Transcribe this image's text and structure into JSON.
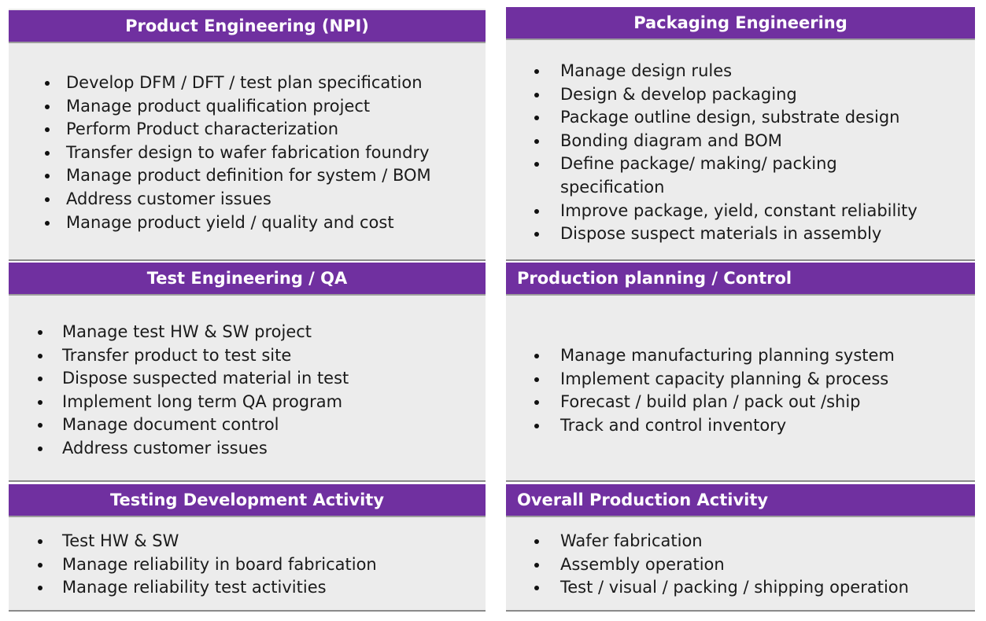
{
  "panels": [
    {
      "title": "Product Engineering (NPI)",
      "items": [
        "Develop DFM / DFT / test plan specification",
        "Manage product qualification project",
        "Perform Product characterization",
        "Transfer design to wafer fabrication foundry",
        "Manage product definition for system / BOM",
        "Address customer issues",
        "Manage product yield / quality and cost"
      ]
    },
    {
      "title": "Packaging Engineering",
      "items": [
        "Manage design rules",
        "Design & develop packaging",
        "Package outline design, substrate design",
        "Bonding diagram and BOM",
        "Define package/ making/ packing",
        "specification",
        "Improve package, yield, constant reliability",
        "Dispose suspect materials in assembly"
      ]
    },
    {
      "title": "Test Engineering / QA",
      "items": [
        "Manage test HW & SW project",
        "Transfer product to test site",
        "Dispose suspected material in test",
        "Implement long term QA program",
        "Manage document control",
        "Address customer issues"
      ]
    },
    {
      "title": "Production planning / Control",
      "items": [
        "Manage manufacturing planning system",
        "Implement capacity planning & process",
        "Forecast / build plan / pack out /ship",
        "Track and control inventory"
      ]
    },
    {
      "title": "Testing Development Activity",
      "items": [
        "Test HW & SW",
        "Manage reliability in board fabrication",
        "Manage reliability test activities"
      ]
    },
    {
      "title": "Overall Production Activity",
      "items": [
        "Wafer fabrication",
        "Assembly operation",
        "Test / visual / packing / shipping operation"
      ]
    }
  ]
}
